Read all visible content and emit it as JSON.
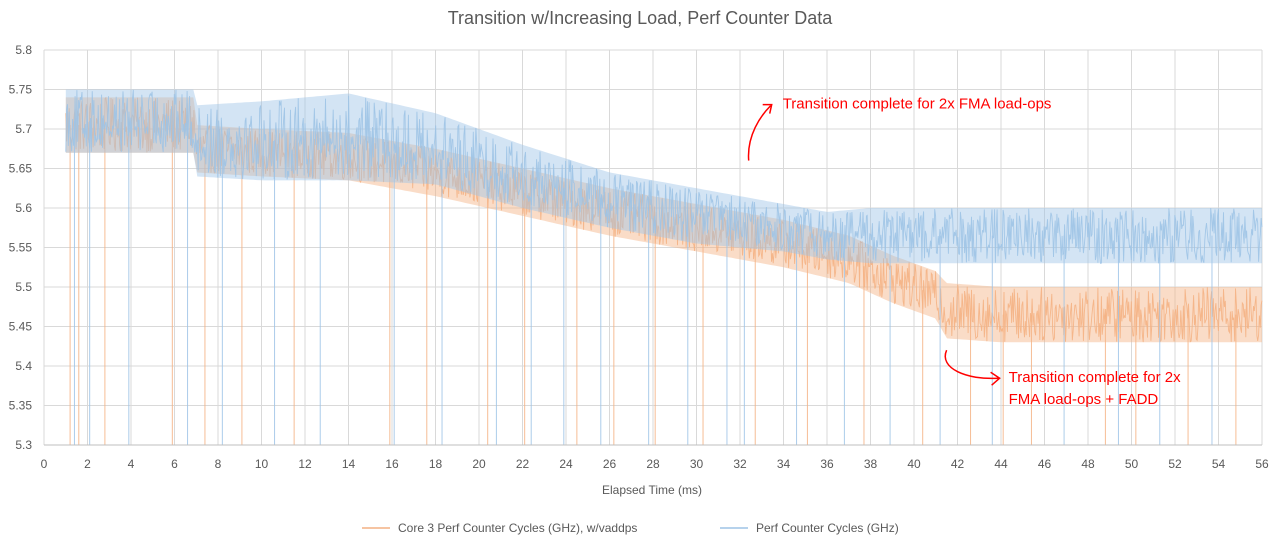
{
  "chart_data": {
    "type": "line",
    "title": "Transition w/Increasing Load, Perf Counter Data",
    "xlabel": "Elapsed Time (ms)",
    "ylabel": "",
    "xlim": [
      0,
      56
    ],
    "ylim": [
      5.3,
      5.8
    ],
    "x_ticks": [
      "0",
      "2",
      "4",
      "6",
      "8",
      "10",
      "12",
      "14",
      "16",
      "18",
      "20",
      "22",
      "24",
      "26",
      "28",
      "30",
      "32",
      "34",
      "36",
      "38",
      "40",
      "42",
      "44",
      "46",
      "48",
      "50",
      "52",
      "54",
      "56"
    ],
    "y_ticks": [
      "5.3",
      "5.35",
      "5.4",
      "5.45",
      "5.5",
      "5.55",
      "5.6",
      "5.65",
      "5.7",
      "5.75",
      "5.8"
    ],
    "grid": true,
    "legend_position": "bottom",
    "series": [
      {
        "name": "Core 3 Perf Counter Cycles (GHz), w/vaddps",
        "color": "#f4b183",
        "x": [
          1,
          2,
          4,
          6,
          6.9,
          7,
          10,
          14,
          18,
          22,
          26,
          30,
          34,
          37,
          39,
          41,
          41.5,
          44,
          48,
          52,
          56
        ],
        "y": [
          5.705,
          5.705,
          5.705,
          5.705,
          5.705,
          5.675,
          5.67,
          5.665,
          5.645,
          5.62,
          5.595,
          5.575,
          5.555,
          5.535,
          5.51,
          5.49,
          5.47,
          5.465,
          5.465,
          5.465,
          5.465
        ],
        "band": [
          0.035,
          0.035,
          0.035,
          0.035,
          0.035,
          0.03,
          0.03,
          0.03,
          0.03,
          0.03,
          0.03,
          0.03,
          0.03,
          0.03,
          0.03,
          0.03,
          0.035,
          0.035,
          0.035,
          0.035,
          0.035
        ],
        "spike_x": [
          1.2,
          1.6,
          2.8,
          5.9,
          7.4,
          9.1,
          11.5,
          15.9,
          17.6,
          20.4,
          22.1,
          24.5,
          26.2,
          28.1,
          30.3,
          32.7,
          35.1,
          37.7,
          40.4,
          42.6,
          44.1,
          45.4,
          48.8,
          50.2,
          52.6,
          54.8
        ],
        "spike_y": [
          5.3,
          5.3,
          5.3,
          5.3,
          5.3,
          5.3,
          5.3,
          5.3,
          5.3,
          5.3,
          5.3,
          5.3,
          5.3,
          5.3,
          5.3,
          5.3,
          5.3,
          5.3,
          5.3,
          5.3,
          5.3,
          5.3,
          5.3,
          5.3,
          5.3,
          5.3
        ]
      },
      {
        "name": "Perf Counter Cycles (GHz)",
        "color": "#9dc3e6",
        "x": [
          1,
          2,
          4,
          6,
          6.9,
          7,
          10,
          14,
          18,
          22,
          26,
          30,
          34,
          36,
          38,
          42,
          46,
          50,
          56
        ],
        "y": [
          5.71,
          5.71,
          5.71,
          5.71,
          5.71,
          5.685,
          5.685,
          5.69,
          5.675,
          5.64,
          5.61,
          5.59,
          5.575,
          5.565,
          5.565,
          5.565,
          5.565,
          5.565,
          5.565
        ],
        "band": [
          0.04,
          0.04,
          0.04,
          0.04,
          0.04,
          0.045,
          0.05,
          0.055,
          0.045,
          0.04,
          0.035,
          0.035,
          0.03,
          0.03,
          0.035,
          0.035,
          0.035,
          0.035,
          0.035
        ],
        "spike_x": [
          1.4,
          2.1,
          3.9,
          6.6,
          8.2,
          10.6,
          12.7,
          16.1,
          18.3,
          20.8,
          22.4,
          23.9,
          25.6,
          27.8,
          29.6,
          31.4,
          32.2,
          34.6,
          36.8,
          38.9,
          41.2,
          43.6,
          46.9,
          49.4,
          51.3,
          53.7
        ],
        "spike_y": [
          5.3,
          5.3,
          5.3,
          5.3,
          5.3,
          5.3,
          5.3,
          5.3,
          5.3,
          5.3,
          5.3,
          5.3,
          5.3,
          5.3,
          5.3,
          5.3,
          5.3,
          5.3,
          5.3,
          5.3,
          5.3,
          5.3,
          5.3,
          5.3,
          5.3,
          5.3
        ]
      }
    ],
    "annotations": [
      {
        "text_lines": [
          "Transition complete for 2x FMA load-ops"
        ],
        "color": "#ff0000",
        "target_x": 32.4,
        "target_y": 5.66
      },
      {
        "text_lines": [
          "Transition complete for 2x",
          "FMA load-ops + FADD"
        ],
        "color": "#ff0000",
        "target_x": 41.5,
        "target_y": 5.42
      }
    ]
  }
}
